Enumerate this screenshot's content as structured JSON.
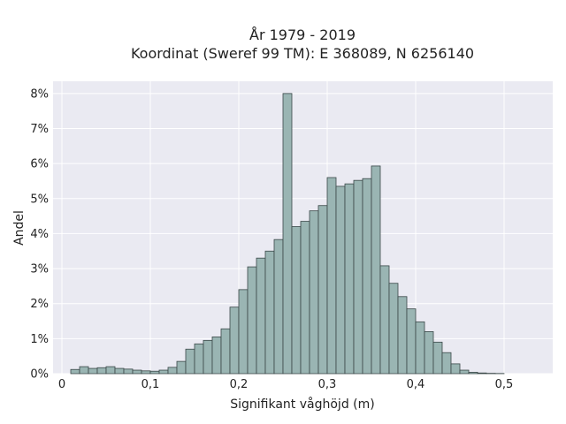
{
  "chart_data": {
    "type": "bar",
    "title": "År 1979 - 2019",
    "subtitle": "Koordinat (Sweref 99 TM): E 368089, N 6256140",
    "xlabel": "Signifikant våghöjd (m)",
    "ylabel": "Andel",
    "xlim": [
      -0.01,
      0.555
    ],
    "ylim": [
      0,
      8.35
    ],
    "x_ticks": [
      0,
      0.1,
      0.2,
      0.3,
      0.4,
      0.5
    ],
    "x_tick_labels": [
      "0",
      "0,1",
      "0,2",
      "0,3",
      "0,4",
      "0,5"
    ],
    "y_ticks": [
      0,
      1,
      2,
      3,
      4,
      5,
      6,
      7,
      8
    ],
    "y_tick_labels": [
      "0%",
      "1%",
      "2%",
      "3%",
      "4%",
      "5%",
      "6%",
      "7%",
      "8%"
    ],
    "grid": true,
    "bin_width": 0.01,
    "bin_starts": [
      0.01,
      0.02,
      0.03,
      0.04,
      0.05,
      0.06,
      0.07,
      0.08,
      0.09,
      0.1,
      0.11,
      0.12,
      0.13,
      0.14,
      0.15,
      0.16,
      0.17,
      0.18,
      0.19,
      0.2,
      0.21,
      0.22,
      0.23,
      0.24,
      0.25,
      0.26,
      0.27,
      0.28,
      0.29,
      0.3,
      0.31,
      0.32,
      0.33,
      0.34,
      0.35,
      0.36,
      0.37,
      0.38,
      0.39,
      0.4,
      0.41,
      0.42,
      0.43,
      0.44,
      0.45,
      0.46,
      0.47,
      0.48,
      0.49,
      0.5,
      0.51
    ],
    "values": [
      0.12,
      0.2,
      0.15,
      0.17,
      0.2,
      0.15,
      0.13,
      0.1,
      0.08,
      0.07,
      0.1,
      0.18,
      0.35,
      0.7,
      0.85,
      0.95,
      1.05,
      1.28,
      1.9,
      2.4,
      3.05,
      3.3,
      3.5,
      3.83,
      8.0,
      4.2,
      4.35,
      4.65,
      4.8,
      5.6,
      5.35,
      5.42,
      5.52,
      5.57,
      5.93,
      3.08,
      2.58,
      2.2,
      1.85,
      1.48,
      1.2,
      0.9,
      0.6,
      0.28,
      0.1,
      0.04,
      0.02,
      0.01,
      0.005,
      0.0,
      0.0
    ],
    "colors": {
      "bar_fill": "#9ab5b3",
      "bar_stroke": "#3a4848",
      "plot_bg": "#eaeaf2",
      "grid": "#ffffff"
    }
  }
}
